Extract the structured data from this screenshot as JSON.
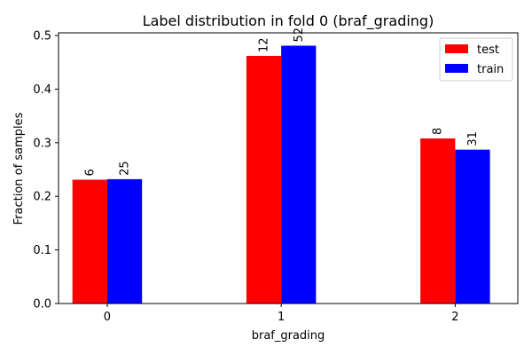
{
  "chart_data": {
    "type": "bar",
    "title": "Label distribution in fold 0 (braf_grading)",
    "xlabel": "braf_grading",
    "ylabel": "Fraction of samples",
    "categories": [
      "0",
      "1",
      "2"
    ],
    "ylim": [
      0,
      0.505
    ],
    "yticks": [
      "0.0",
      "0.1",
      "0.2",
      "0.3",
      "0.4",
      "0.5"
    ],
    "grid": false,
    "legend_position": "top-right",
    "series": [
      {
        "name": "test",
        "color": "#ff0000",
        "values": [
          0.231,
          0.462,
          0.308
        ],
        "labels": [
          "6",
          "12",
          "8"
        ]
      },
      {
        "name": "train",
        "color": "#0000ff",
        "values": [
          0.232,
          0.481,
          0.287
        ],
        "labels": [
          "25",
          "52",
          "31"
        ]
      }
    ]
  }
}
